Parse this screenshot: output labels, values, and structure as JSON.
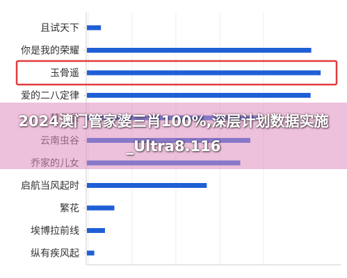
{
  "chart_data": {
    "type": "bar",
    "orientation": "horizontal",
    "categories": [
      "且试天下",
      "你是我的荣耀",
      "玉骨遥",
      "爱的二八定律",
      "梦华录",
      "云南虫谷",
      "乔家的儿女",
      "启航当风起时",
      "繁花",
      "埃博拉前线",
      "纵有疾风起"
    ],
    "values": [
      22,
      336,
      350,
      335,
      260,
      245,
      230,
      180,
      42,
      28,
      12
    ],
    "xlim": [
      0,
      380
    ],
    "highlighted_category": "玉骨遥",
    "colors": {
      "bar": "#1f5fd6",
      "highlight_box": "#e03a3a",
      "axis": "#cfcfcf",
      "grid": "#ececec"
    },
    "title": "",
    "xlabel": "",
    "ylabel": ""
  },
  "overlay": {
    "text": "2024澳门管家婆三肖100%,深层计划数据实施_Ultra8.116"
  }
}
